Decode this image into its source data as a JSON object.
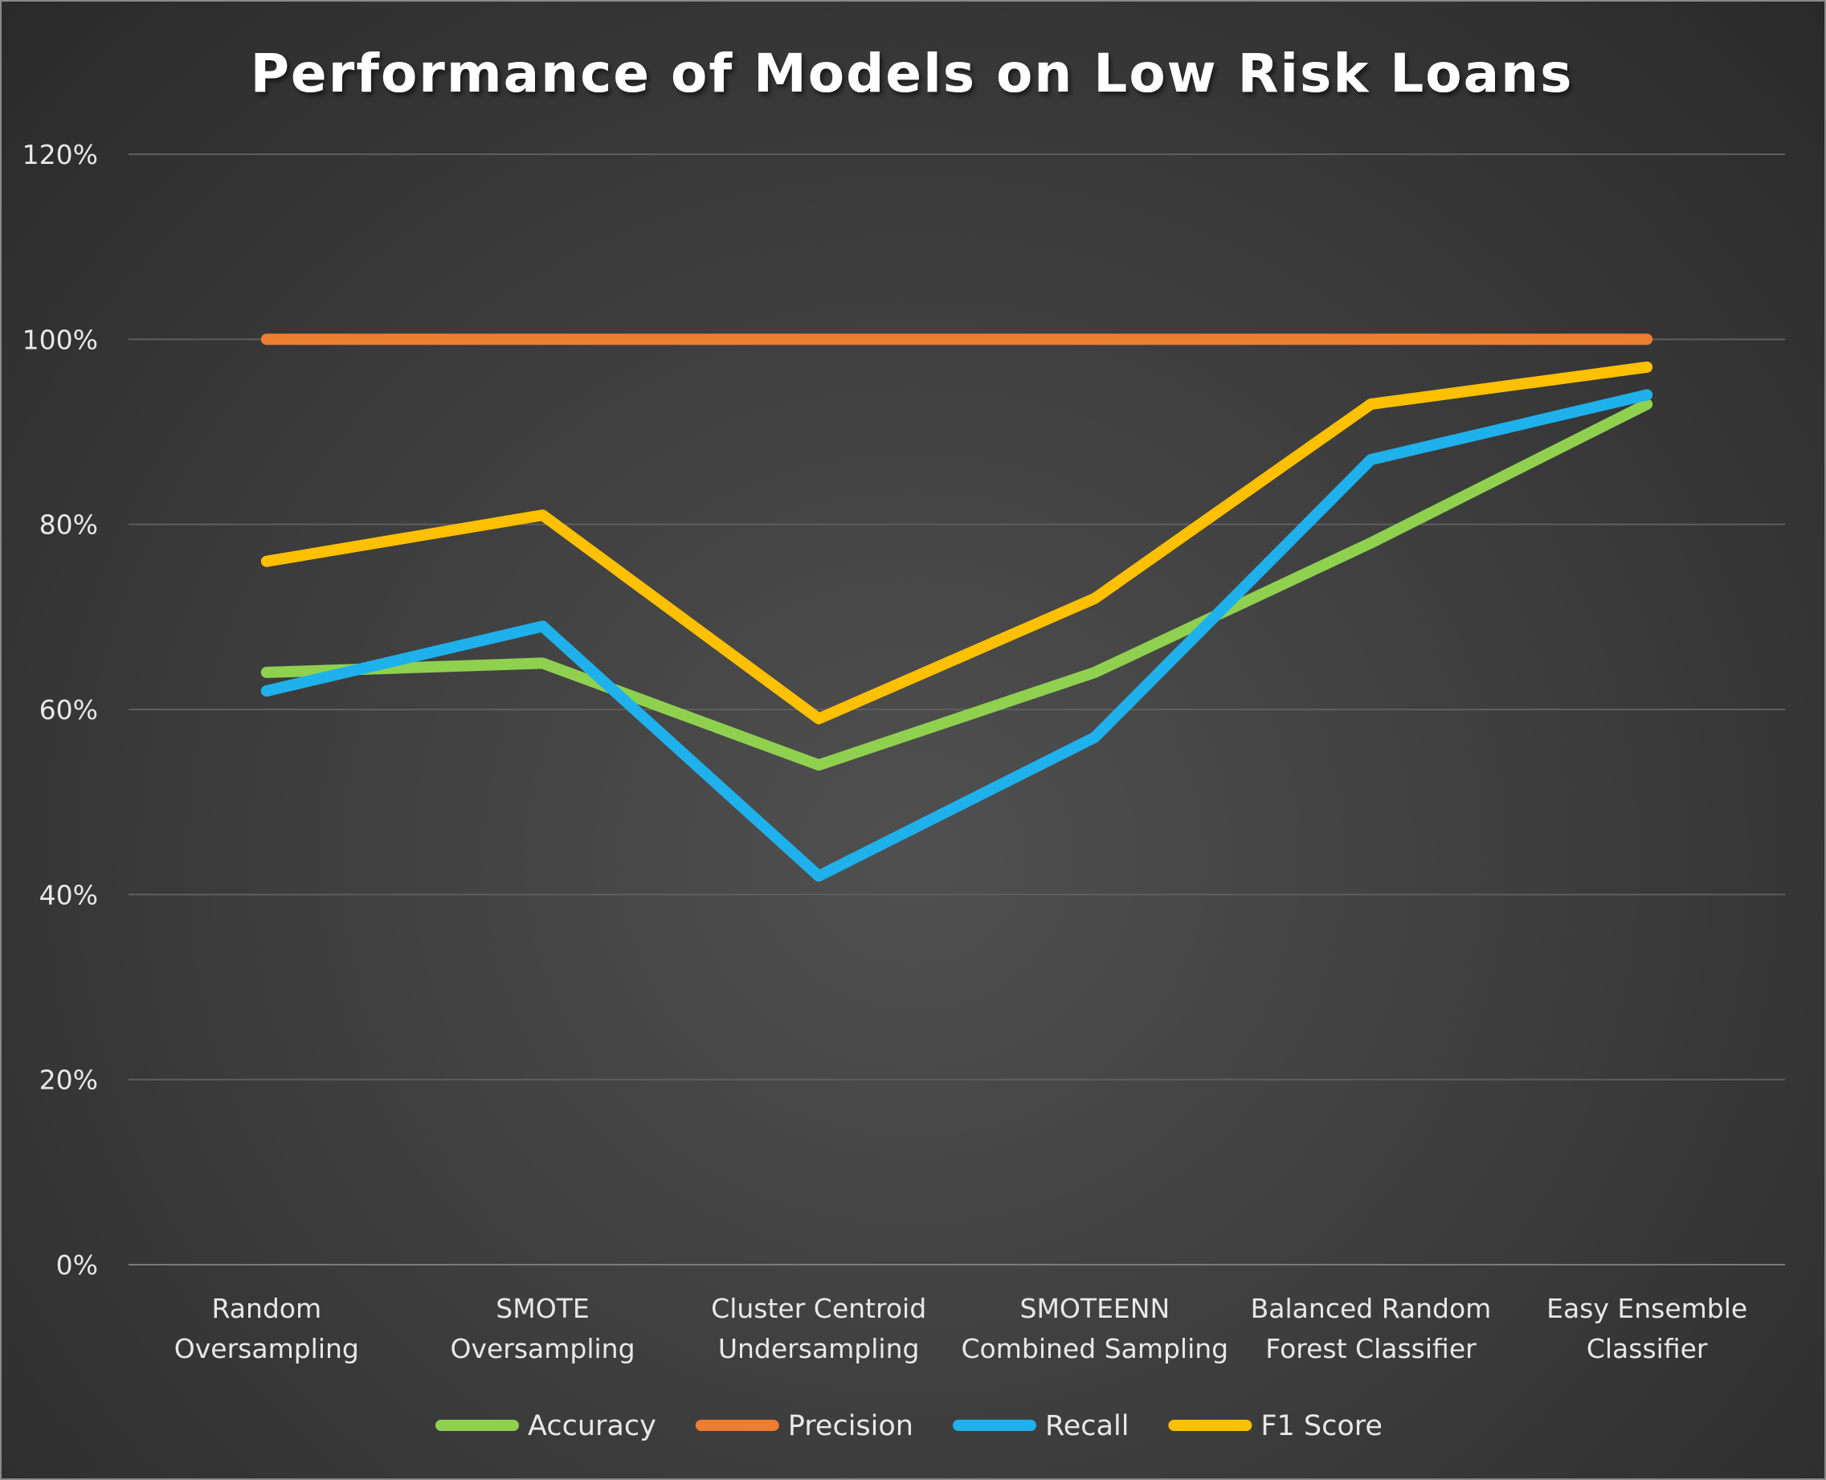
{
  "chart_data": {
    "type": "line",
    "title": "Performance of Models on Low Risk Loans",
    "xlabel": "",
    "ylabel": "",
    "categories": [
      [
        "Random",
        "Oversampling"
      ],
      [
        "SMOTE",
        "Oversampling"
      ],
      [
        "Cluster Centroid",
        "Undersampling"
      ],
      [
        "SMOTEENN",
        "Combined Sampling"
      ],
      [
        "Balanced Random",
        "Forest Classifier"
      ],
      [
        "Easy Ensemble",
        "Classifier"
      ]
    ],
    "y_ticks": [
      "0%",
      "20%",
      "40%",
      "60%",
      "80%",
      "100%",
      "120%"
    ],
    "ylim": [
      0,
      1.2
    ],
    "y_step": 0.2,
    "grid": true,
    "legend_position": "bottom",
    "series": [
      {
        "name": "Accuracy",
        "color": "#8fd14f",
        "values": [
          0.64,
          0.65,
          0.54,
          0.64,
          0.78,
          0.93
        ]
      },
      {
        "name": "Precision",
        "color": "#ed7d31",
        "values": [
          1.0,
          1.0,
          1.0,
          1.0,
          1.0,
          1.0
        ]
      },
      {
        "name": "Recall",
        "color": "#1fb1ec",
        "values": [
          0.62,
          0.69,
          0.42,
          0.57,
          0.87,
          0.94
        ]
      },
      {
        "name": "F1 Score",
        "color": "#ffc000",
        "values": [
          0.76,
          0.81,
          0.59,
          0.72,
          0.93,
          0.97
        ]
      }
    ]
  }
}
